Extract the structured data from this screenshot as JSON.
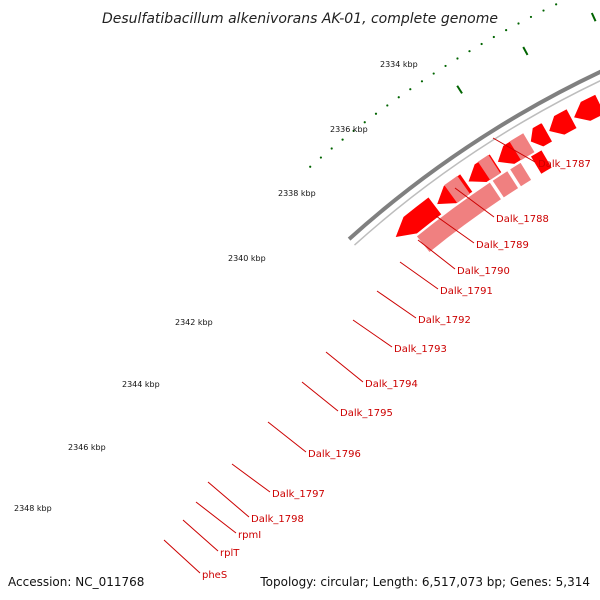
{
  "title": "Desulfatibacillum alkenivorans AK-01, complete genome",
  "footer": {
    "accession": "Accession: NC_011768",
    "summary": "Topology: circular; Length: 6,517,073 bp; Genes: 5,314"
  },
  "ticks": [
    "2334 kbp",
    "2336 kbp",
    "2338 kbp",
    "2340 kbp",
    "2342 kbp",
    "2344 kbp",
    "2346 kbp",
    "2348 kbp"
  ],
  "gene_labels": [
    "Dalk_1787",
    "Dalk_1788",
    "Dalk_1789",
    "Dalk_1790",
    "Dalk_1791",
    "Dalk_1792",
    "Dalk_1793",
    "Dalk_1794",
    "Dalk_1795",
    "Dalk_1796",
    "Dalk_1797",
    "Dalk_1798",
    "rpmI",
    "rplT",
    "pheS"
  ],
  "colors": {
    "cds": "#ff0000",
    "rna_gene": "#f08080",
    "cog_olive": "#6b8e23",
    "cog_purple": "#7b68ee",
    "cog_dark_gray": "#696969",
    "cog_light_gray": "#c8c8c8",
    "cog_green": "#00ff99",
    "label": "#cc0000",
    "tick": "#006400",
    "backbone": "#808080"
  }
}
